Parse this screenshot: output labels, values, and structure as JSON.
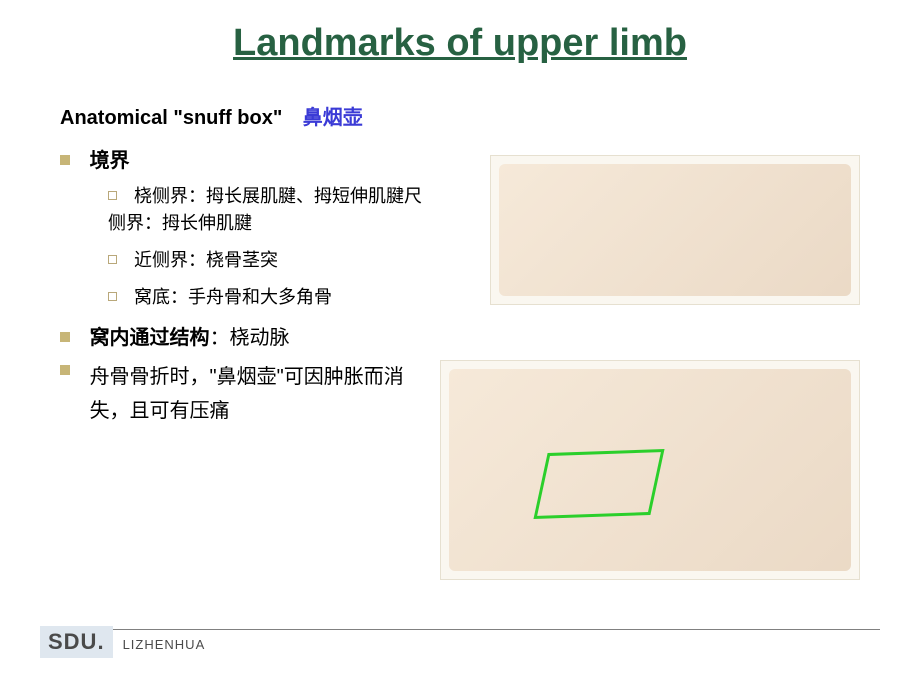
{
  "colors": {
    "title": "#276142",
    "subtitle_zh": "#3b3bd6",
    "bullet_square": "#c7b577",
    "bullet_hollow_border": "#b9a87a",
    "text_black": "#000000",
    "label_bold": "#000000",
    "footer_bg": "#dfe7ef",
    "footer_text": "#4a4a4a",
    "footer_line": "#808080",
    "highlight_box": "#2bcf2b"
  },
  "fonts": {
    "title_size": 38,
    "subtitle_size": 20,
    "body_size": 20,
    "sub_size": 18,
    "inst_size": 22,
    "author_size": 13
  },
  "title": "Landmarks of upper limb",
  "subtitle": {
    "en": "Anatomical \"snuff box\"",
    "zh": "鼻烟壶"
  },
  "content": {
    "boundaries": {
      "label": "境界",
      "items": [
        "桡侧界：拇长展肌腱、拇短伸肌腱尺侧界：拇长伸肌腱",
        "近侧界：桡骨茎突",
        "窝底：手舟骨和大多角骨"
      ]
    },
    "through": {
      "label": "窝内通过结构",
      "text": "：桡动脉"
    },
    "note": "舟骨骨折时，\"鼻烟壶\"可因肿胀而消失，且可有压痛"
  },
  "images": {
    "top_alt": "hand lateral view — snuff box surface",
    "bottom_alt": "hand dissection — snuff box tendons, radial artery, green triangle"
  },
  "footer": {
    "institution": "SDU.",
    "author": "LIZHENHUA"
  }
}
